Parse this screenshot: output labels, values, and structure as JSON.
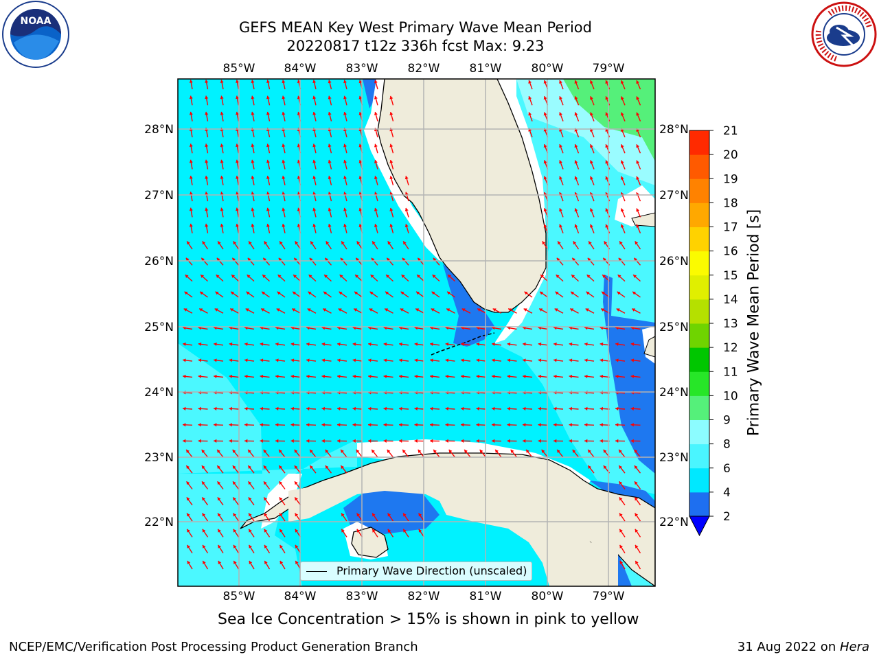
{
  "title": {
    "line1": "GEFS MEAN Key West Primary Wave Mean Period",
    "line2": "20220817 t12z 336h fcst   Max: 9.23"
  },
  "logos": {
    "left": "NOAA",
    "right": "NATIONAL WEATHER SERVICE"
  },
  "axes": {
    "lon_labels": [
      "85°W",
      "84°W",
      "83°W",
      "82°W",
      "81°W",
      "80°W",
      "79°W"
    ],
    "lat_labels": [
      "28°N",
      "27°N",
      "26°N",
      "25°N",
      "24°N",
      "23°N",
      "22°N"
    ]
  },
  "legend": {
    "label": "Primary Wave Direction (unscaled)"
  },
  "colorbar": {
    "label": "Primary Wave Mean Period [s]",
    "ticks": [
      "2",
      "4",
      "6",
      "8",
      "9",
      "10",
      "11",
      "12",
      "13",
      "14",
      "15",
      "16",
      "17",
      "18",
      "19",
      "20",
      "21"
    ],
    "colors": [
      "#1e6ff0",
      "#00e8ff",
      "#4af5ff",
      "#8cfcff",
      "#55f07a",
      "#27e628",
      "#00c600",
      "#6fd400",
      "#b5e000",
      "#e0ef00",
      "#fbfb00",
      "#ffd200",
      "#ffa800",
      "#ff8200",
      "#ff5a00",
      "#ff2a00",
      "#ff0000"
    ],
    "extend_color": "#0000ff"
  },
  "caption": "Sea Ice Concentration > 15% is shown in pink to yellow",
  "footer": {
    "left": "NCEP/EMC/Verification Post Processing Product Generation Branch",
    "date": "31 Aug 2022 on ",
    "machine": "Hera"
  },
  "colors": {
    "ocean_base": "#00f2ff",
    "ocean_light": "#4bf8ff",
    "ocean_lighter": "#9afcff",
    "deep_blue": "#1e78f0",
    "green": "#55f07a",
    "land": "#efecdb",
    "arrow": "#ff0000",
    "grid": "#b3b3b3"
  }
}
